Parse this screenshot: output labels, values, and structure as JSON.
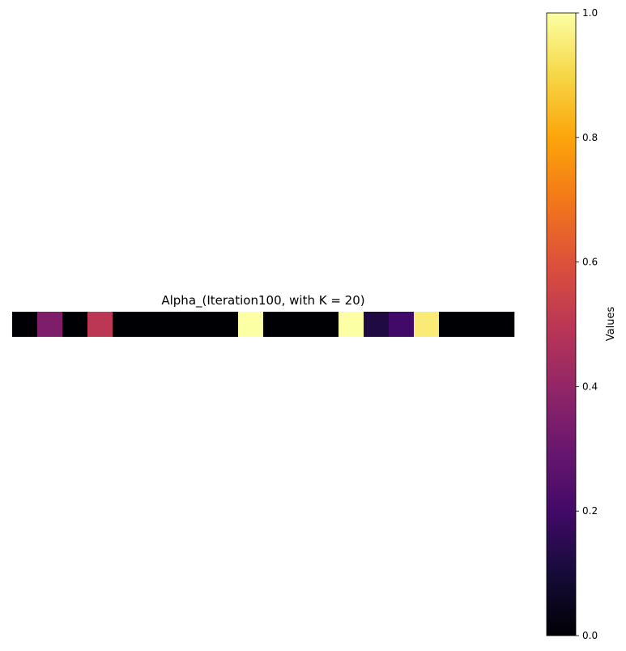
{
  "chart_data": {
    "type": "heatmap",
    "title": "Alpha_(Iteration100, with K = 20)",
    "rows": 1,
    "columns": 20,
    "values": [
      [
        0.0,
        0.35,
        0.0,
        0.5,
        0.0,
        0.0,
        0.0,
        0.0,
        0.0,
        1.0,
        0.0,
        0.0,
        0.0,
        1.0,
        0.12,
        0.2,
        0.95,
        0.0,
        0.0,
        0.0
      ]
    ],
    "colormap": "inferno",
    "vmin": 0.0,
    "vmax": 1.0,
    "axes_visible": false,
    "colorbar": {
      "label": "Values",
      "ticks": [
        0.0,
        0.2,
        0.4,
        0.6,
        0.8,
        1.0
      ],
      "tick_labels": [
        "0.0",
        "0.2",
        "0.4",
        "0.6",
        "0.8",
        "1.0"
      ],
      "position": "right"
    }
  }
}
